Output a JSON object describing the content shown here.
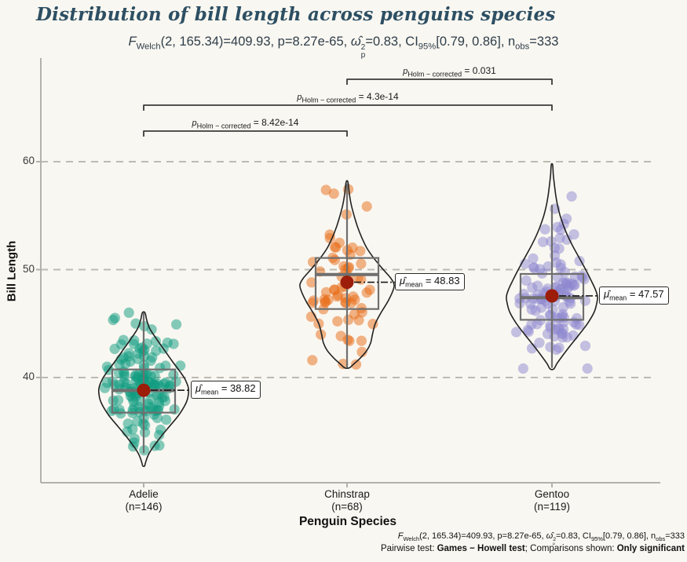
{
  "header": {
    "title": "Distribution of bill length across penguins species"
  },
  "stats": {
    "F": "F",
    "F_sub": "Welch",
    "df_eq": "(2, 165.34)=409.93, p=8.27e-65, ",
    "omega": "ω̂",
    "omega_sup": "2",
    "omega_sub": "p",
    "eq2": "=0.83, CI",
    "ci_sub": "95%",
    "ci_val": "[0.79, 0.86], n",
    "n_sub": "obs",
    "n_eq": "=333"
  },
  "caption": {
    "pairwise_prefix": "Pairwise test: ",
    "pairwise_test": "Games − Howell test",
    "comparisons_prefix": "; Comparisons shown: ",
    "comparisons_shown": "Only significant"
  },
  "axes": {
    "x_title": "Penguin Species",
    "y_title": "Bill Length"
  },
  "labels": {
    "mean_mu": "μ̂",
    "mean_sub": "mean",
    "mean_eq": " = ",
    "p": "p",
    "p_sub": "Holm − corrected",
    "p_eq": " = "
  },
  "chart_data": {
    "type": "violin",
    "title": "Distribution of bill length across penguins species",
    "subtitle_stats": {
      "F_df1": 2,
      "F_df2": 165.34,
      "F": 409.93,
      "p": "8.27e-65",
      "omega_sq_p": 0.83,
      "ci_95": [
        0.79,
        0.86
      ],
      "n_obs": 333
    },
    "xlabel": "Penguin Species",
    "ylabel": "Bill Length",
    "ylim": [
      30.3,
      69.5
    ],
    "yticks": [
      60,
      50,
      40
    ],
    "grid": "dashed-horizontal",
    "species": [
      {
        "name": "Adelie",
        "n_label": "(n=146)",
        "n": 146,
        "mean": 38.82,
        "mean_label": "38.82",
        "median": 38.8,
        "q1": 36.75,
        "q3": 40.75,
        "whisker_low": 33.0,
        "whisker_high": 46.0,
        "min": 31.9,
        "max": 46.0,
        "point_color": "#0f9b80",
        "seed": 11,
        "violin": [
          [
            46.0,
            0.03
          ],
          [
            45.3,
            0.07
          ],
          [
            44.5,
            0.14
          ],
          [
            43.5,
            0.3
          ],
          [
            42.5,
            0.47
          ],
          [
            41.5,
            0.64
          ],
          [
            40.5,
            0.82
          ],
          [
            39.8,
            0.93
          ],
          [
            39.0,
            1.0
          ],
          [
            38.2,
            0.99
          ],
          [
            37.5,
            0.93
          ],
          [
            36.5,
            0.78
          ],
          [
            35.5,
            0.58
          ],
          [
            34.5,
            0.38
          ],
          [
            33.5,
            0.2
          ],
          [
            32.8,
            0.1
          ],
          [
            32.1,
            0.04
          ],
          [
            31.8,
            0.02
          ]
        ]
      },
      {
        "name": "Chinstrap",
        "n_label": "(n=68)",
        "n": 68,
        "mean": 48.83,
        "mean_label": "48.83",
        "median": 49.55,
        "q1": 46.35,
        "q3": 51.08,
        "whisker_low": 40.9,
        "whisker_high": 58.0,
        "min": 40.9,
        "max": 58.1,
        "point_color": "#e86c16",
        "seed": 22,
        "violin": [
          [
            58.1,
            0.02
          ],
          [
            57.0,
            0.05
          ],
          [
            56.0,
            0.09
          ],
          [
            55.0,
            0.15
          ],
          [
            54.0,
            0.22
          ],
          [
            53.0,
            0.31
          ],
          [
            52.0,
            0.42
          ],
          [
            51.0,
            0.58
          ],
          [
            50.0,
            0.77
          ],
          [
            49.2,
            0.93
          ],
          [
            48.6,
            1.0
          ],
          [
            48.0,
            0.97
          ],
          [
            47.0,
            0.86
          ],
          [
            46.0,
            0.72
          ],
          [
            45.0,
            0.6
          ],
          [
            44.0,
            0.54
          ],
          [
            43.2,
            0.5
          ],
          [
            42.5,
            0.42
          ],
          [
            41.8,
            0.28
          ],
          [
            41.2,
            0.13
          ],
          [
            40.9,
            0.05
          ]
        ]
      },
      {
        "name": "Gentoo",
        "n_label": "(n=119)",
        "n": 119,
        "mean": 47.57,
        "mean_label": "47.57",
        "median": 47.4,
        "q1": 45.35,
        "q3": 49.6,
        "whisker_low": 40.9,
        "whisker_high": 56.0,
        "min": 40.8,
        "max": 59.7,
        "point_color": "#8e88d0",
        "seed": 33,
        "violin": [
          [
            59.7,
            0.015
          ],
          [
            58.8,
            0.03
          ],
          [
            58.0,
            0.05
          ],
          [
            57.0,
            0.08
          ],
          [
            56.0,
            0.12
          ],
          [
            55.0,
            0.18
          ],
          [
            54.0,
            0.26
          ],
          [
            53.0,
            0.36
          ],
          [
            52.0,
            0.48
          ],
          [
            51.0,
            0.61
          ],
          [
            50.0,
            0.74
          ],
          [
            49.0,
            0.86
          ],
          [
            48.2,
            0.95
          ],
          [
            47.5,
            1.0
          ],
          [
            46.8,
            0.98
          ],
          [
            46.0,
            0.92
          ],
          [
            45.0,
            0.78
          ],
          [
            44.0,
            0.6
          ],
          [
            43.0,
            0.41
          ],
          [
            42.0,
            0.23
          ],
          [
            41.3,
            0.11
          ],
          [
            40.8,
            0.04
          ]
        ]
      }
    ],
    "comparisons": [
      {
        "pair": [
          "Adelie",
          "Chinstrap"
        ],
        "p_value": "8.42e-14"
      },
      {
        "pair": [
          "Adelie",
          "Gentoo"
        ],
        "p_value": "4.3e-14"
      },
      {
        "pair": [
          "Chinstrap",
          "Gentoo"
        ],
        "p_value": "0.031"
      }
    ],
    "colors": {
      "adelie_points": "#0f9b80",
      "chinstrap_points": "#e86c16",
      "gentoo_points": "#8e88d0",
      "mean_dot": "#9b1d0a",
      "box_stroke": "#6f6f6f",
      "violin_stroke": "#222222",
      "gridline": "#bcbab3",
      "axis_line": "#b3b1ab",
      "title": "#2d4f63",
      "background": "#f9f7f1"
    }
  }
}
